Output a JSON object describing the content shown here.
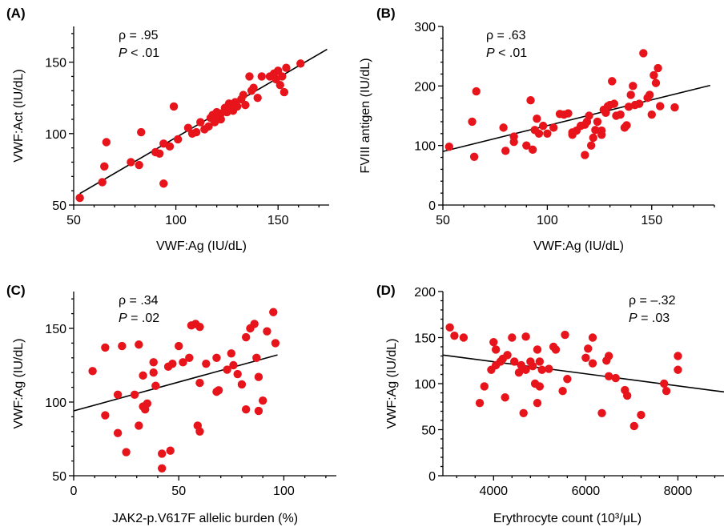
{
  "colors": {
    "point": "#e8141b",
    "line": "#000000",
    "background": "#ffffff"
  },
  "chart_data": [
    {
      "type": "scatter",
      "panel_label": "(A)",
      "xlabel": "VWF:Ag (IU/dL)",
      "ylabel": "VWF:Act (IU/dL)",
      "xlim": [
        50,
        175
      ],
      "ylim": [
        50,
        175
      ],
      "xticks": [
        50,
        100,
        150
      ],
      "yticks": [
        50,
        100,
        150
      ],
      "annotation": {
        "rho": "ρ = .95",
        "p_symbol": "P",
        "p_rest": " < .01"
      },
      "fit_line": {
        "x": [
          53,
          174
        ],
        "y": [
          58,
          159
        ]
      },
      "points": [
        [
          53,
          55
        ],
        [
          64,
          66
        ],
        [
          65,
          77
        ],
        [
          66,
          94
        ],
        [
          78,
          80
        ],
        [
          82,
          78
        ],
        [
          83,
          101
        ],
        [
          90,
          87
        ],
        [
          92,
          86
        ],
        [
          94,
          65
        ],
        [
          94,
          93
        ],
        [
          97,
          91
        ],
        [
          99,
          119
        ],
        [
          101,
          96
        ],
        [
          106,
          104
        ],
        [
          108,
          100
        ],
        [
          110,
          101
        ],
        [
          112,
          108
        ],
        [
          114,
          103
        ],
        [
          116,
          105
        ],
        [
          117,
          111
        ],
        [
          118,
          113
        ],
        [
          119,
          108
        ],
        [
          120,
          115
        ],
        [
          121,
          112
        ],
        [
          122,
          114
        ],
        [
          122,
          110
        ],
        [
          124,
          118
        ],
        [
          125,
          115
        ],
        [
          126,
          121
        ],
        [
          127,
          118
        ],
        [
          128,
          116
        ],
        [
          129,
          122
        ],
        [
          130,
          119
        ],
        [
          132,
          124
        ],
        [
          133,
          127
        ],
        [
          134,
          120
        ],
        [
          136,
          140
        ],
        [
          137,
          130
        ],
        [
          138,
          132
        ],
        [
          140,
          125
        ],
        [
          142,
          140
        ],
        [
          146,
          140
        ],
        [
          148,
          142
        ],
        [
          149,
          138
        ],
        [
          150,
          144
        ],
        [
          151,
          134
        ],
        [
          152,
          140
        ],
        [
          153,
          129
        ],
        [
          154,
          146
        ],
        [
          161,
          149
        ]
      ]
    },
    {
      "type": "scatter",
      "panel_label": "(B)",
      "xlabel": "VWF:Ag (IU/dL)",
      "ylabel": "FVIII antigen (IU/dL)",
      "xlim": [
        50,
        180
      ],
      "ylim": [
        0,
        300
      ],
      "xticks": [
        50,
        100,
        150
      ],
      "yticks": [
        0,
        100,
        200,
        300
      ],
      "annotation": {
        "rho": "ρ = .63",
        "p_symbol": "P",
        "p_rest": " < .01"
      },
      "fit_line": {
        "x": [
          50,
          178
        ],
        "y": [
          90,
          201
        ]
      },
      "points": [
        [
          53,
          98
        ],
        [
          64,
          140
        ],
        [
          65,
          81
        ],
        [
          66,
          191
        ],
        [
          79,
          130
        ],
        [
          80,
          91
        ],
        [
          84,
          115
        ],
        [
          84,
          106
        ],
        [
          90,
          100
        ],
        [
          92,
          176
        ],
        [
          93,
          93
        ],
        [
          94,
          126
        ],
        [
          95,
          145
        ],
        [
          96,
          120
        ],
        [
          98,
          133
        ],
        [
          100,
          120
        ],
        [
          103,
          130
        ],
        [
          106,
          153
        ],
        [
          108,
          152
        ],
        [
          110,
          154
        ],
        [
          112,
          118
        ],
        [
          112,
          122
        ],
        [
          114,
          125
        ],
        [
          116,
          133
        ],
        [
          118,
          135
        ],
        [
          118,
          84
        ],
        [
          119,
          140
        ],
        [
          120,
          150
        ],
        [
          121,
          100
        ],
        [
          122,
          113
        ],
        [
          123,
          126
        ],
        [
          124,
          140
        ],
        [
          126,
          125
        ],
        [
          126,
          118
        ],
        [
          127,
          160
        ],
        [
          128,
          155
        ],
        [
          129,
          166
        ],
        [
          130,
          168
        ],
        [
          131,
          208
        ],
        [
          132,
          170
        ],
        [
          133,
          150
        ],
        [
          135,
          152
        ],
        [
          137,
          130
        ],
        [
          138,
          134
        ],
        [
          139,
          165
        ],
        [
          140,
          185
        ],
        [
          141,
          200
        ],
        [
          142,
          168
        ],
        [
          144,
          170
        ],
        [
          146,
          255
        ],
        [
          148,
          180
        ],
        [
          149,
          185
        ],
        [
          150,
          152
        ],
        [
          151,
          218
        ],
        [
          152,
          205
        ],
        [
          153,
          230
        ],
        [
          154,
          166
        ],
        [
          161,
          164
        ]
      ]
    },
    {
      "type": "scatter",
      "panel_label": "(C)",
      "xlabel": "JAK2-p.V617F allelic burden (%)",
      "ylabel": "VWF:Ag (IU/dL)",
      "xlim": [
        0,
        125
      ],
      "ylim": [
        50,
        175
      ],
      "xticks": [
        0,
        50,
        100
      ],
      "yticks": [
        50,
        100,
        150
      ],
      "annotation": {
        "rho": "ρ = .34",
        "p_symbol": "P",
        "p_rest": " = .02"
      },
      "fit_line": {
        "x": [
          0,
          97
        ],
        "y": [
          94,
          132
        ]
      },
      "points": [
        [
          9,
          121
        ],
        [
          15,
          91
        ],
        [
          15,
          137
        ],
        [
          21,
          79
        ],
        [
          21,
          105
        ],
        [
          23,
          138
        ],
        [
          25,
          66
        ],
        [
          29,
          105
        ],
        [
          31,
          84
        ],
        [
          31,
          139
        ],
        [
          33,
          118
        ],
        [
          33,
          97
        ],
        [
          34,
          95
        ],
        [
          35,
          99
        ],
        [
          38,
          120
        ],
        [
          38,
          127
        ],
        [
          39,
          111
        ],
        [
          42,
          55
        ],
        [
          42,
          65
        ],
        [
          45,
          124
        ],
        [
          46,
          67
        ],
        [
          47,
          126
        ],
        [
          50,
          138
        ],
        [
          52,
          127
        ],
        [
          55,
          130
        ],
        [
          56,
          152
        ],
        [
          58,
          153
        ],
        [
          59,
          84
        ],
        [
          60,
          80
        ],
        [
          60,
          113
        ],
        [
          60,
          151
        ],
        [
          63,
          126
        ],
        [
          68,
          107
        ],
        [
          68,
          130
        ],
        [
          69,
          108
        ],
        [
          73,
          122
        ],
        [
          75,
          133
        ],
        [
          76,
          125
        ],
        [
          78,
          119
        ],
        [
          80,
          112
        ],
        [
          82,
          95
        ],
        [
          82,
          144
        ],
        [
          84,
          150
        ],
        [
          86,
          153
        ],
        [
          87,
          130
        ],
        [
          88,
          117
        ],
        [
          88,
          94
        ],
        [
          90,
          101
        ],
        [
          92,
          148
        ],
        [
          95,
          161
        ],
        [
          96,
          140
        ]
      ]
    },
    {
      "type": "scatter",
      "panel_label": "(D)",
      "xlabel": "Erythrocyte count (10³/μL)",
      "ylabel": "VWF:Ag (IU/dL)",
      "xlim": [
        2900,
        9000
      ],
      "ylim": [
        0,
        200
      ],
      "xticks": [
        4000,
        6000,
        8000
      ],
      "yticks": [
        0,
        50,
        100,
        150,
        200
      ],
      "annotation": {
        "rho": "ρ = –.32",
        "p_symbol": "P",
        "p_rest": " = .03"
      },
      "fit_line": {
        "x": [
          2900,
          9000
        ],
        "y": [
          131,
          91
        ]
      },
      "points": [
        [
          3050,
          161
        ],
        [
          3150,
          152
        ],
        [
          3350,
          150
        ],
        [
          3700,
          79
        ],
        [
          3800,
          97
        ],
        [
          3950,
          115
        ],
        [
          4000,
          145
        ],
        [
          4050,
          137
        ],
        [
          4050,
          120
        ],
        [
          4150,
          124
        ],
        [
          4200,
          127
        ],
        [
          4250,
          85
        ],
        [
          4300,
          131
        ],
        [
          4400,
          150
        ],
        [
          4450,
          124
        ],
        [
          4550,
          112
        ],
        [
          4600,
          120
        ],
        [
          4650,
          68
        ],
        [
          4700,
          151
        ],
        [
          4700,
          115
        ],
        [
          4800,
          124
        ],
        [
          4850,
          119
        ],
        [
          4900,
          100
        ],
        [
          4950,
          79
        ],
        [
          4950,
          137
        ],
        [
          5000,
          97
        ],
        [
          5000,
          124
        ],
        [
          5050,
          115
        ],
        [
          5200,
          116
        ],
        [
          5300,
          140
        ],
        [
          5350,
          137
        ],
        [
          5500,
          92
        ],
        [
          5550,
          153
        ],
        [
          5600,
          105
        ],
        [
          6000,
          128
        ],
        [
          6050,
          138
        ],
        [
          6150,
          122
        ],
        [
          6150,
          150
        ],
        [
          6350,
          68
        ],
        [
          6450,
          125
        ],
        [
          6500,
          130
        ],
        [
          6500,
          108
        ],
        [
          6650,
          106
        ],
        [
          6850,
          93
        ],
        [
          6900,
          87
        ],
        [
          7050,
          54
        ],
        [
          7200,
          66
        ],
        [
          7700,
          100
        ],
        [
          7750,
          92
        ],
        [
          8000,
          130
        ],
        [
          8000,
          115
        ]
      ]
    }
  ]
}
